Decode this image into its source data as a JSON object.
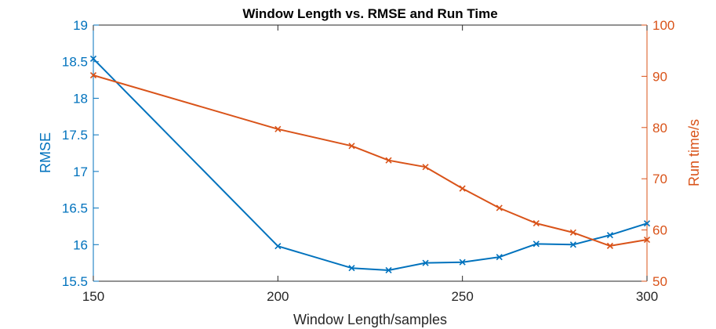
{
  "chart_data": {
    "type": "line",
    "title": "Window Length vs. RMSE and Run Time",
    "xlabel": "Window Length/samples",
    "ylabel_left": "RMSE",
    "ylabel_right": "Run time/s",
    "xlim": [
      150,
      300
    ],
    "ylim_left": [
      15.5,
      19
    ],
    "ylim_right": [
      50,
      100
    ],
    "x_ticks": [
      "150",
      "200",
      "250",
      "300"
    ],
    "y_ticks_left": [
      "15.5",
      "16",
      "16.5",
      "17",
      "17.5",
      "18",
      "18.5",
      "19"
    ],
    "y_ticks_right": [
      "50",
      "60",
      "70",
      "80",
      "90",
      "100"
    ],
    "grid": false,
    "colors": {
      "left_axis": "#0072BD",
      "right_axis": "#D95319"
    },
    "series": [
      {
        "axis": "left",
        "marker": "x",
        "color": "#0072BD",
        "x": [
          150,
          200,
          220,
          230,
          240,
          250,
          260,
          270,
          280,
          290,
          300
        ],
        "values": [
          18.54,
          15.98,
          15.68,
          15.65,
          15.75,
          15.76,
          15.83,
          16.01,
          16.0,
          16.13,
          16.29
        ]
      },
      {
        "axis": "right",
        "marker": "x",
        "color": "#D95319",
        "x": [
          150,
          200,
          220,
          230,
          240,
          250,
          260,
          270,
          280,
          290,
          300
        ],
        "values": [
          90.2,
          79.7,
          76.4,
          73.6,
          72.3,
          68.1,
          64.3,
          61.3,
          59.5,
          56.9,
          58.1
        ]
      }
    ]
  }
}
